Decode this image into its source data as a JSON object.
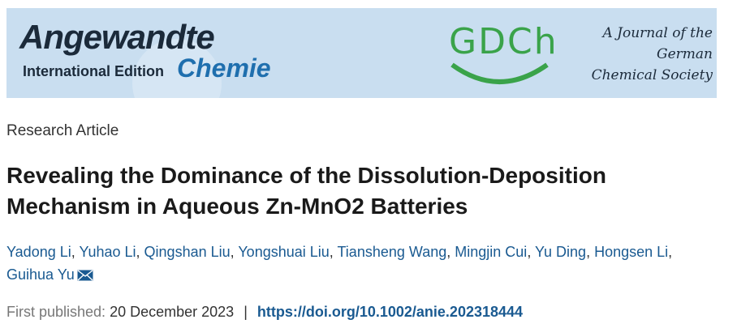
{
  "banner": {
    "journal_name": "Angewandte",
    "edition": "International Edition",
    "subtitle": "Chemie",
    "society_logo_text": "GDCh",
    "tagline_lines": [
      "A Journal of the",
      "German",
      "Chemical Society"
    ],
    "colors": {
      "background": "#c9def0",
      "gdch_green": "#3aa34a",
      "chemie_blue": "#1f6fae"
    }
  },
  "article": {
    "type": "Research Article",
    "title_lines": [
      "Revealing the Dominance of the Dissolution-Deposition",
      "Mechanism in Aqueous Zn-MnO2 Batteries"
    ],
    "authors": [
      "Yadong Li",
      "Yuhao Li",
      "Qingshan Liu",
      "Yongshuai Liu",
      "Tiansheng Wang",
      "Mingjin Cui",
      "Yu Ding",
      "Hongsen Li",
      "Guihua Yu"
    ],
    "author_separator": ",",
    "corresponding_icon": "mail-icon",
    "published_label": "First published:",
    "published_date": "20 December 2023",
    "separator": "|",
    "doi": "https://doi.org/10.1002/anie.202318444",
    "link_color": "#1a5a91"
  }
}
